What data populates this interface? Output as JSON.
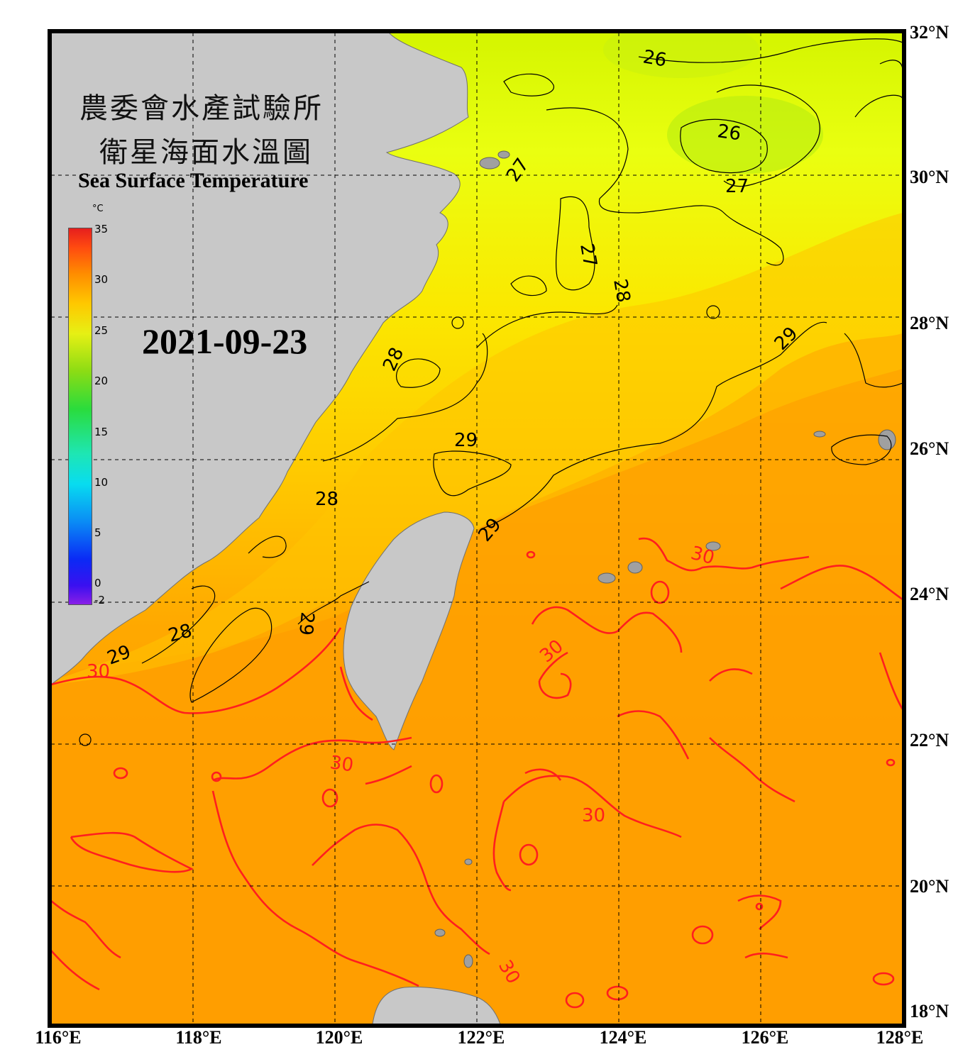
{
  "title": {
    "zh_line1": "農委會水產試驗所",
    "zh_line2": "衛星海面水溫圖",
    "en": "Sea Surface Temperature"
  },
  "date": "2021-09-23",
  "colorbar": {
    "unit": "°C",
    "ticks": [
      "35",
      "30",
      "25",
      "20",
      "15",
      "10",
      "5",
      "0",
      "-2"
    ],
    "range": [
      -2,
      35
    ]
  },
  "axes": {
    "lat_labels": [
      "32°N",
      "30°N",
      "28°N",
      "26°N",
      "24°N",
      "22°N",
      "20°N",
      "18°N"
    ],
    "lon_labels": [
      "116°E",
      "118°E",
      "120°E",
      "122°E",
      "124°E",
      "126°E",
      "128°E"
    ],
    "lat_range": [
      18,
      32
    ],
    "lon_range": [
      116,
      128
    ],
    "grid": true
  },
  "contour_labels": {
    "black": [
      "26",
      "26",
      "27",
      "27",
      "27",
      "28",
      "28",
      "28",
      "28",
      "29",
      "29",
      "29",
      "29",
      "29"
    ],
    "red": [
      "30",
      "30",
      "30",
      "30",
      "30",
      "30"
    ]
  },
  "colors": {
    "land": "#c8c8c8",
    "warm_sea": "#ff9c00",
    "mid_sea": "#ffd400",
    "cool_sea": "#e8ff00",
    "contour_black": "#000000",
    "contour_red": "#ff1e1e",
    "frame": "#000000"
  }
}
